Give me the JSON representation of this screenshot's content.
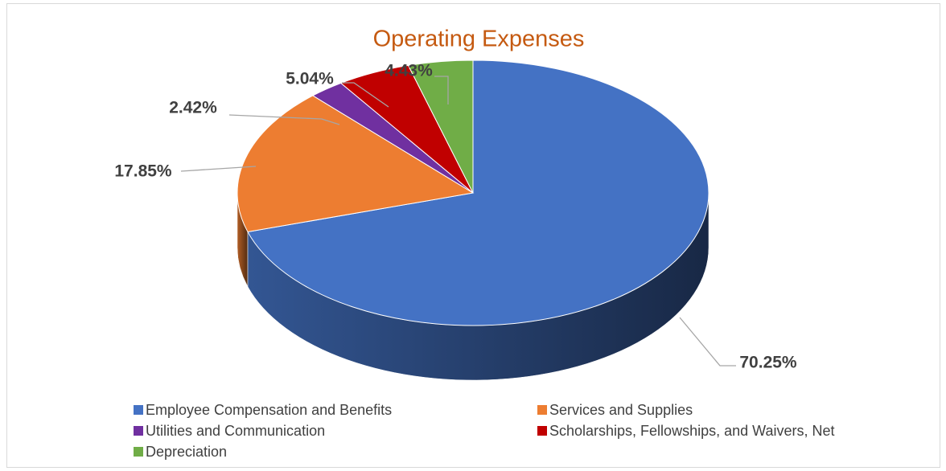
{
  "chart_data": {
    "type": "pie",
    "title": "Operating Expenses",
    "categories": [
      "Employee Compensation and Benefits",
      "Services and Supplies",
      "Utilities and Communication",
      "Scholarships, Fellowships, and Waivers, Net",
      "Depreciation"
    ],
    "values": [
      70.25,
      17.85,
      2.42,
      5.04,
      4.43
    ],
    "value_labels": [
      "70.25%",
      "17.85%",
      "2.42%",
      "5.04%",
      "4.43%"
    ],
    "colors": [
      "#4472c4",
      "#ed7d31",
      "#7030a0",
      "#c00000",
      "#70ad47"
    ],
    "legend": "bottom"
  }
}
